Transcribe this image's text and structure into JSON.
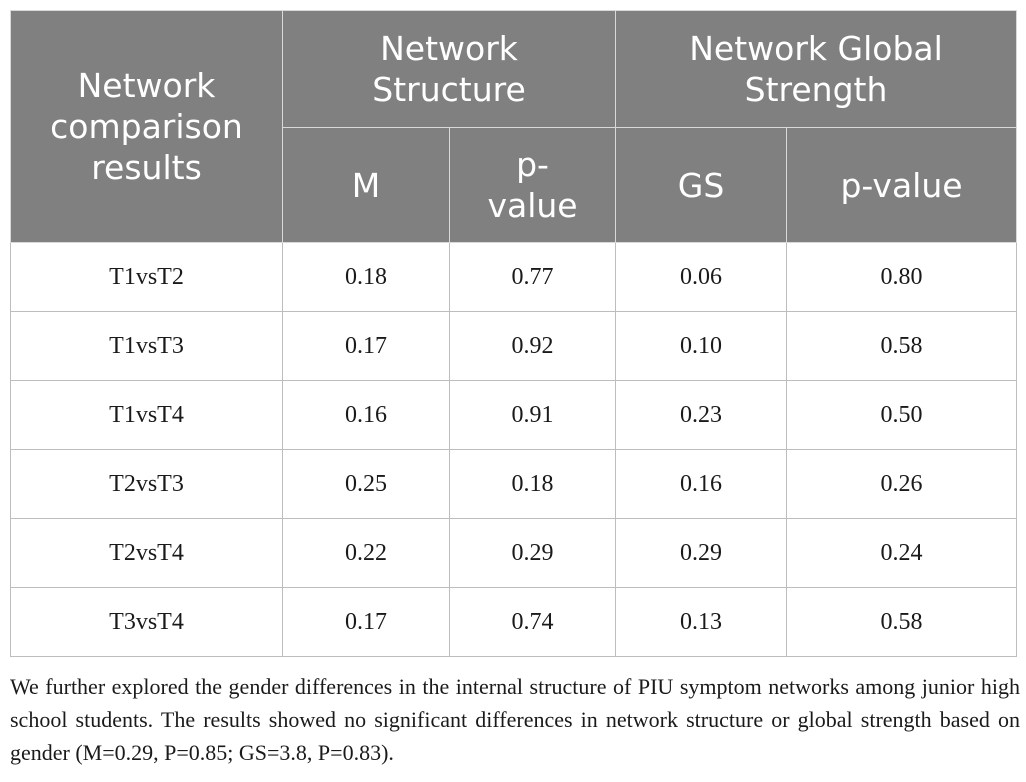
{
  "table": {
    "header": {
      "row_label": "Network comparison results",
      "group1": "Network Structure",
      "group2": "Network Global Strength",
      "sub": [
        "M",
        "p-value",
        "GS",
        "p-value"
      ]
    },
    "rows": [
      {
        "comparison": "T1vsT2",
        "M": "0.18",
        "p1": "0.77",
        "GS": "0.06",
        "p2": "0.80"
      },
      {
        "comparison": "T1vsT3",
        "M": "0.17",
        "p1": "0.92",
        "GS": "0.10",
        "p2": "0.58"
      },
      {
        "comparison": "T1vsT4",
        "M": "0.16",
        "p1": "0.91",
        "GS": "0.23",
        "p2": "0.50"
      },
      {
        "comparison": "T2vsT3",
        "M": "0.25",
        "p1": "0.18",
        "GS": "0.16",
        "p2": "0.26"
      },
      {
        "comparison": "T2vsT4",
        "M": "0.22",
        "p1": "0.29",
        "GS": "0.29",
        "p2": "0.24"
      },
      {
        "comparison": "T3vsT4",
        "M": "0.17",
        "p1": "0.74",
        "GS": "0.13",
        "p2": "0.58"
      }
    ]
  },
  "note": "We further explored the gender differences in the internal structure of PIU symptom networks among junior high school students. The results showed no significant differences in network structure or global strength based on gender (M=0.29, P=0.85; GS=3.8, P=0.83).",
  "colors": {
    "header_bg": "#808080",
    "header_text": "#ffffff",
    "border": "#bdbdbd"
  }
}
